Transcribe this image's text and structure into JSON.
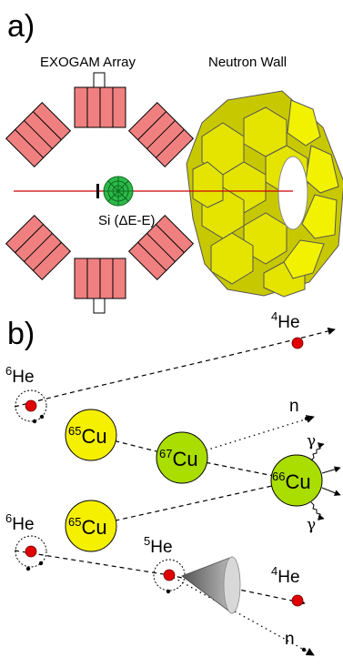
{
  "panel_a": {
    "label": "a)",
    "exogam_label": "EXOGAM Array",
    "neutron_wall_label": "Neutron Wall",
    "si_label": "Si (ΔE-E)"
  },
  "panel_b": {
    "label": "b)",
    "projectiles": [
      {
        "mass": "6",
        "symbol": "He"
      },
      {
        "mass": "6",
        "symbol": "He"
      }
    ],
    "targets": [
      {
        "mass": "65",
        "symbol": "Cu"
      },
      {
        "mass": "65",
        "symbol": "Cu"
      }
    ],
    "intermediate_cu": {
      "mass": "67",
      "symbol": "Cu"
    },
    "final_cu": {
      "mass": "66",
      "symbol": "Cu"
    },
    "he5": {
      "mass": "5",
      "symbol": "He"
    },
    "alphas": [
      {
        "mass": "4",
        "symbol": "He"
      },
      {
        "mass": "4",
        "symbol": "He"
      }
    ],
    "neutrons": [
      "n",
      "n"
    ],
    "gammas": [
      "γ",
      "γ"
    ]
  },
  "colors": {
    "exogam_fill": "#f08080",
    "neutron_wall_fill": "#e4e400",
    "si_detector": "#2fb84a",
    "beam_line": "#cc0000",
    "cu65_fill": "#f5f000",
    "cu67_fill": "#aadd00",
    "cu66_fill": "#aadd00",
    "he_particle": "#e00000"
  }
}
